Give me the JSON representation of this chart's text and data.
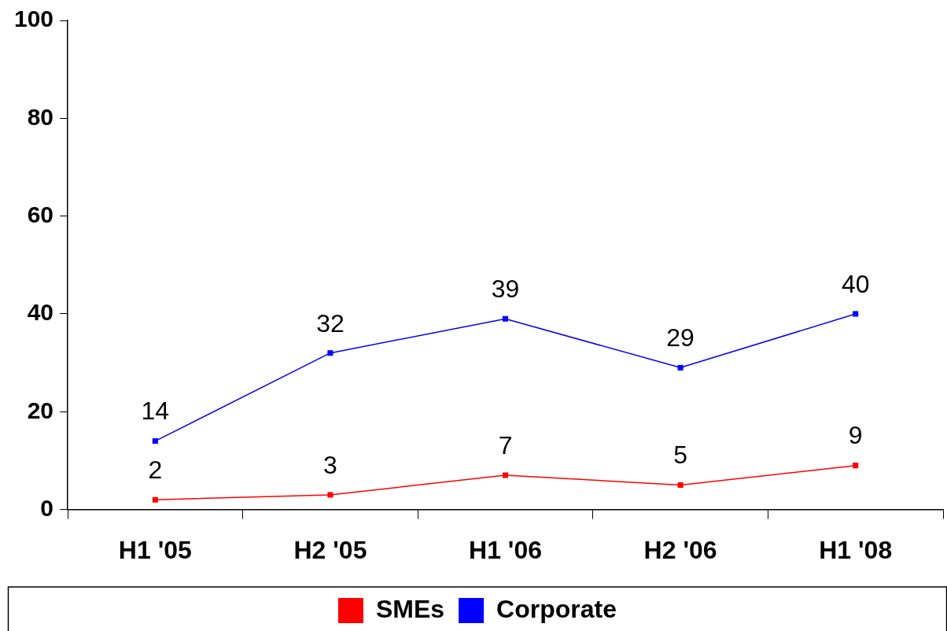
{
  "chart_data": {
    "type": "line",
    "categories": [
      "H1 '05",
      "H2 '05",
      "H1 '06",
      "H2 '06",
      "H1 '08"
    ],
    "series": [
      {
        "name": "SMEs",
        "color": "#ff0000",
        "values": [
          2,
          3,
          7,
          5,
          9
        ]
      },
      {
        "name": "Corporate",
        "color": "#0000ff",
        "values": [
          14,
          32,
          39,
          29,
          40
        ]
      }
    ],
    "ylim": [
      0,
      100
    ],
    "yticks": [
      0,
      20,
      40,
      60,
      80,
      100
    ],
    "grid": false,
    "legend": "bottom",
    "marker": "square",
    "line_style": "solid",
    "data_labels": true
  }
}
